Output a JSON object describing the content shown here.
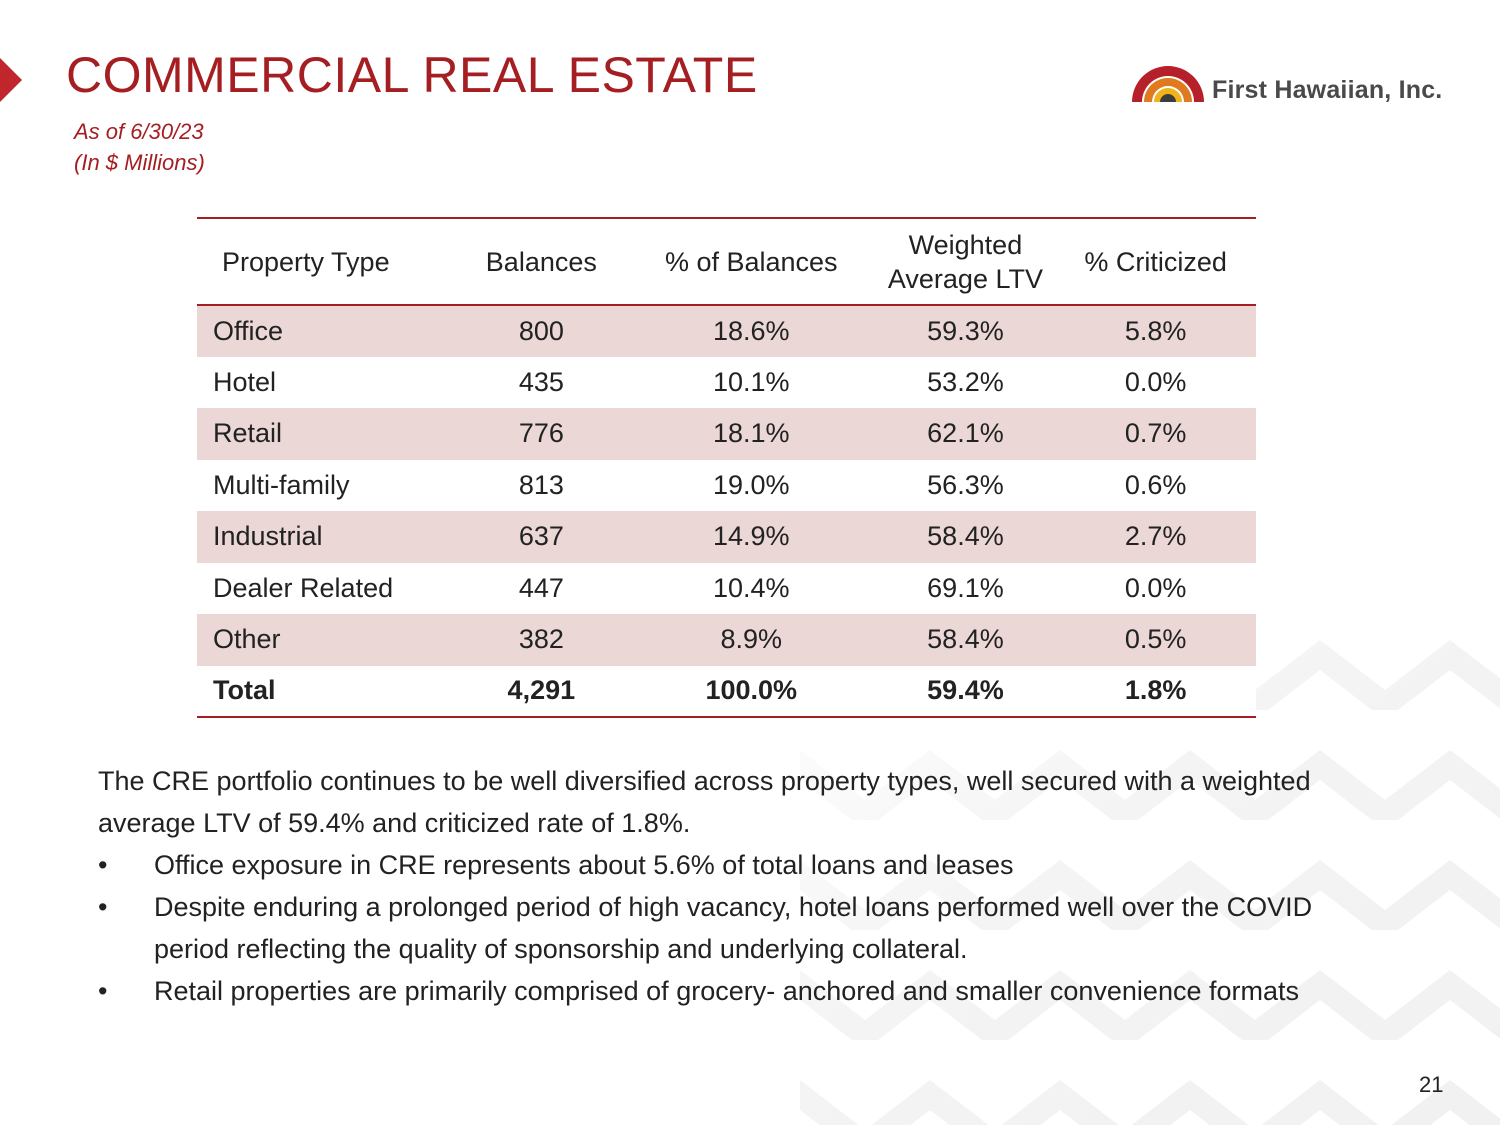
{
  "slide": {
    "title": "COMMERCIAL REAL ESTATE",
    "subtitle_date": "As of 6/30/23",
    "subtitle_units": "(In $ Millions)",
    "logo_text": "First Hawaiian, Inc.",
    "page_number": "21"
  },
  "colors": {
    "accent": "#a51e22",
    "row_shade": "#ead7d6",
    "body_text": "#222222",
    "logo_text": "#4a4a4a"
  },
  "table": {
    "headers": {
      "property_type": "Property Type",
      "balances": "Balances",
      "pct_balances": "% of Balances",
      "ltv_line1": "Weighted",
      "ltv_line2": "Average LTV",
      "pct_criticized": "% Criticized"
    },
    "rows": [
      {
        "type": "Office",
        "balance": "800",
        "pct": "18.6%",
        "ltv": "59.3%",
        "criticized": "5.8%"
      },
      {
        "type": "Hotel",
        "balance": "435",
        "pct": "10.1%",
        "ltv": "53.2%",
        "criticized": "0.0%"
      },
      {
        "type": "Retail",
        "balance": "776",
        "pct": "18.1%",
        "ltv": "62.1%",
        "criticized": "0.7%"
      },
      {
        "type": "Multi-family",
        "balance": "813",
        "pct": "19.0%",
        "ltv": "56.3%",
        "criticized": "0.6%"
      },
      {
        "type": "Industrial",
        "balance": "637",
        "pct": "14.9%",
        "ltv": "58.4%",
        "criticized": "2.7%"
      },
      {
        "type": "Dealer Related",
        "balance": "447",
        "pct": "10.4%",
        "ltv": "69.1%",
        "criticized": "0.0%"
      },
      {
        "type": "Other",
        "balance": "382",
        "pct": "8.9%",
        "ltv": "58.4%",
        "criticized": "0.5%"
      }
    ],
    "total": {
      "type": "Total",
      "balance": "4,291",
      "pct": "100.0%",
      "ltv": "59.4%",
      "criticized": "1.8%"
    }
  },
  "summary": {
    "intro": "The CRE portfolio continues to be well diversified across property types, well secured with a weighted average LTV of 59.4% and criticized rate of 1.8%.",
    "bullet_char": "•",
    "bullets": [
      "Office exposure in CRE represents about 5.6% of total loans and leases",
      "Despite enduring a prolonged period of high vacancy, hotel loans performed well over the COVID period reflecting the quality of sponsorship and underlying collateral.",
      "Retail properties are primarily comprised of grocery- anchored and smaller convenience formats"
    ]
  }
}
